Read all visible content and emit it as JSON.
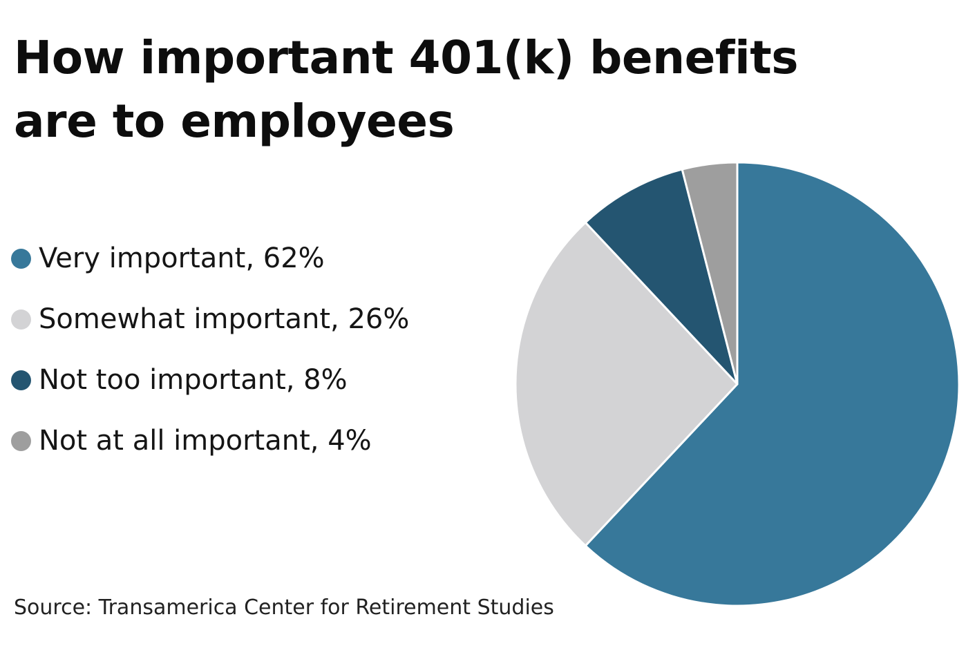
{
  "title": "How important 401(k) benefits are to employees",
  "source": "Source: Transamerica Center for Retirement Studies",
  "legend": [
    {
      "label": "Very important, 62%",
      "color": "#37789A"
    },
    {
      "label": "Somewhat important, 26%",
      "color": "#D3D3D5"
    },
    {
      "label": "Not too important, 8%",
      "color": "#245571"
    },
    {
      "label": "Not at all important, 4%",
      "color": "#9E9E9E"
    }
  ],
  "chart_data": {
    "type": "pie",
    "title": "How important 401(k) benefits are to employees",
    "start": "12 o'clock",
    "direction": "clockwise",
    "slices": [
      {
        "label": "Very important",
        "value": 62,
        "color": "#37789A"
      },
      {
        "label": "Somewhat important",
        "value": 26,
        "color": "#D3D3D5"
      },
      {
        "label": "Not too important",
        "value": 8,
        "color": "#245571"
      },
      {
        "label": "Not at all important",
        "value": 4,
        "color": "#9E9E9E"
      }
    ],
    "legend_position": "left"
  }
}
